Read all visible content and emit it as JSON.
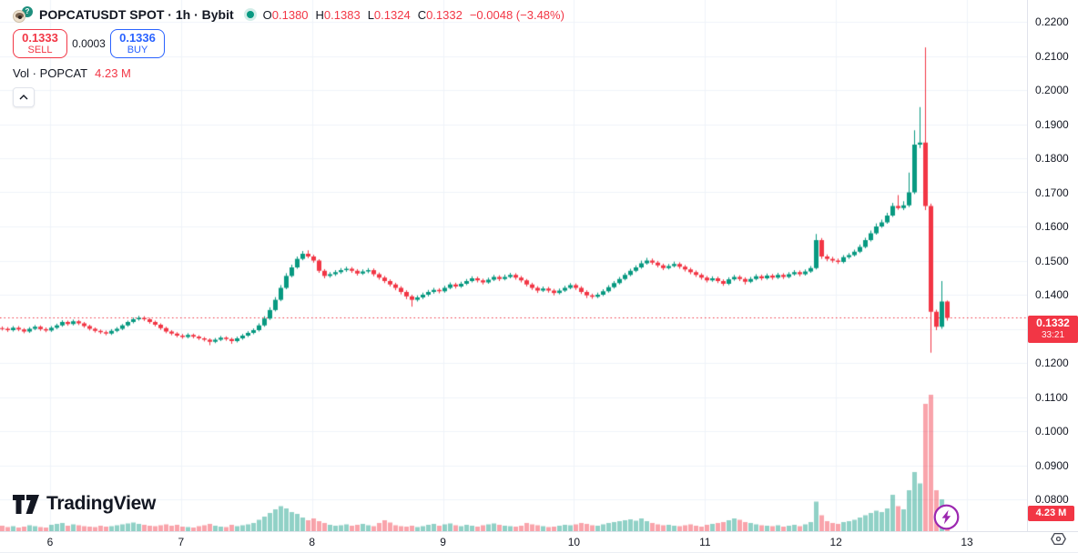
{
  "header": {
    "symbol_title": "POPCATUSDT SPOT · 1h · Bybit",
    "ohlc": {
      "open_label": "O",
      "open": "0.1380",
      "high_label": "H",
      "high": "0.1383",
      "low_label": "L",
      "low": "0.1324",
      "close_label": "C",
      "close": "0.1332",
      "change": "−0.0048 (−3.48%)"
    },
    "sell": {
      "price": "0.1333",
      "label": "SELL"
    },
    "spread": "0.0003",
    "buy": {
      "price": "0.1336",
      "label": "BUY"
    },
    "volume_row": {
      "label": "Vol · POPCAT",
      "value": "4.23 M"
    }
  },
  "watermark": {
    "brand": "TradingView"
  },
  "price_axis": {
    "ticks": [
      "0.2200",
      "0.2100",
      "0.2000",
      "0.1900",
      "0.1800",
      "0.1700",
      "0.1600",
      "0.1500",
      "0.1400",
      "0.1300",
      "0.1200",
      "0.1100",
      "0.1000",
      "0.0900",
      "0.0800"
    ],
    "last_price": "0.1332",
    "countdown": "33:21",
    "volume_badge": "4.23 M"
  },
  "time_axis": {
    "labels": [
      "6",
      "7",
      "8",
      "9",
      "10",
      "11",
      "12",
      "13"
    ]
  },
  "colors": {
    "up": "#089981",
    "down": "#f23645",
    "vol_up": "rgba(8,153,129,0.45)",
    "vol_down": "rgba(242,54,69,0.45)",
    "grid": "#f0f3fa",
    "price_line": "#f23645",
    "label_bg": "#f23645",
    "buy_blue": "#2962ff",
    "boost_purple": "#9c27b0"
  },
  "chart_data": {
    "type": "candlestick",
    "title": "POPCATUSDT SPOT · 1h · Bybit",
    "interval": "1h",
    "exchange": "Bybit",
    "last_price": 0.1332,
    "ylim": [
      0.0707,
      0.2264
    ],
    "x_day_labels": [
      "6",
      "7",
      "8",
      "9",
      "10",
      "11",
      "12",
      "13"
    ],
    "price_scale": 10000,
    "ohlc": [
      [
        1302,
        1307,
        1295,
        1300
      ],
      [
        1300,
        1305,
        1291,
        1296
      ],
      [
        1296,
        1308,
        1292,
        1303
      ],
      [
        1303,
        1308,
        1293,
        1298
      ],
      [
        1298,
        1302,
        1287,
        1292
      ],
      [
        1292,
        1305,
        1288,
        1300
      ],
      [
        1300,
        1311,
        1296,
        1306
      ],
      [
        1306,
        1310,
        1294,
        1299
      ],
      [
        1299,
        1304,
        1290,
        1295
      ],
      [
        1295,
        1308,
        1291,
        1303
      ],
      [
        1303,
        1315,
        1299,
        1310
      ],
      [
        1310,
        1325,
        1306,
        1320
      ],
      [
        1320,
        1324,
        1309,
        1314
      ],
      [
        1314,
        1327,
        1310,
        1322
      ],
      [
        1322,
        1326,
        1311,
        1316
      ],
      [
        1316,
        1320,
        1303,
        1308
      ],
      [
        1308,
        1312,
        1295,
        1300
      ],
      [
        1300,
        1304,
        1289,
        1294
      ],
      [
        1294,
        1298,
        1285,
        1290
      ],
      [
        1290,
        1295,
        1281,
        1286
      ],
      [
        1286,
        1299,
        1282,
        1294
      ],
      [
        1294,
        1305,
        1290,
        1300
      ],
      [
        1300,
        1314,
        1296,
        1310
      ],
      [
        1310,
        1324,
        1306,
        1320
      ],
      [
        1320,
        1333,
        1316,
        1328
      ],
      [
        1328,
        1338,
        1324,
        1332
      ],
      [
        1332,
        1337,
        1323,
        1328
      ],
      [
        1328,
        1332,
        1315,
        1320
      ],
      [
        1320,
        1324,
        1307,
        1312
      ],
      [
        1312,
        1316,
        1297,
        1302
      ],
      [
        1302,
        1306,
        1287,
        1292
      ],
      [
        1292,
        1296,
        1281,
        1286
      ],
      [
        1286,
        1290,
        1275,
        1280
      ],
      [
        1280,
        1285,
        1271,
        1276
      ],
      [
        1276,
        1287,
        1272,
        1282
      ],
      [
        1282,
        1286,
        1272,
        1277
      ],
      [
        1277,
        1281,
        1267,
        1272
      ],
      [
        1272,
        1276,
        1263,
        1268
      ],
      [
        1268,
        1272,
        1252,
        1262
      ],
      [
        1262,
        1273,
        1258,
        1268
      ],
      [
        1268,
        1279,
        1264,
        1274
      ],
      [
        1274,
        1278,
        1265,
        1270
      ],
      [
        1270,
        1274,
        1256,
        1264
      ],
      [
        1264,
        1277,
        1260,
        1272
      ],
      [
        1272,
        1285,
        1268,
        1280
      ],
      [
        1280,
        1293,
        1276,
        1288
      ],
      [
        1288,
        1301,
        1284,
        1296
      ],
      [
        1296,
        1316,
        1292,
        1310
      ],
      [
        1310,
        1337,
        1306,
        1330
      ],
      [
        1330,
        1363,
        1326,
        1355
      ],
      [
        1355,
        1393,
        1351,
        1385
      ],
      [
        1385,
        1428,
        1381,
        1420
      ],
      [
        1420,
        1463,
        1416,
        1455
      ],
      [
        1455,
        1488,
        1451,
        1480
      ],
      [
        1480,
        1512,
        1476,
        1505
      ],
      [
        1505,
        1528,
        1501,
        1520
      ],
      [
        1520,
        1530,
        1507,
        1512
      ],
      [
        1512,
        1517,
        1494,
        1500
      ],
      [
        1500,
        1504,
        1464,
        1470
      ],
      [
        1470,
        1475,
        1448,
        1455
      ],
      [
        1455,
        1466,
        1450,
        1460
      ],
      [
        1460,
        1472,
        1455,
        1466
      ],
      [
        1466,
        1478,
        1461,
        1472
      ],
      [
        1472,
        1482,
        1467,
        1476
      ],
      [
        1476,
        1481,
        1464,
        1470
      ],
      [
        1470,
        1475,
        1456,
        1462
      ],
      [
        1462,
        1474,
        1458,
        1468
      ],
      [
        1468,
        1478,
        1463,
        1472
      ],
      [
        1472,
        1477,
        1454,
        1460
      ],
      [
        1460,
        1465,
        1444,
        1450
      ],
      [
        1450,
        1455,
        1434,
        1440
      ],
      [
        1440,
        1445,
        1424,
        1430
      ],
      [
        1430,
        1435,
        1413,
        1420
      ],
      [
        1420,
        1425,
        1401,
        1408
      ],
      [
        1408,
        1413,
        1387,
        1395
      ],
      [
        1395,
        1400,
        1365,
        1385
      ],
      [
        1385,
        1398,
        1380,
        1392
      ],
      [
        1392,
        1406,
        1387,
        1400
      ],
      [
        1400,
        1414,
        1395,
        1408
      ],
      [
        1408,
        1420,
        1403,
        1414
      ],
      [
        1414,
        1419,
        1404,
        1410
      ],
      [
        1410,
        1426,
        1406,
        1420
      ],
      [
        1420,
        1436,
        1416,
        1430
      ],
      [
        1430,
        1435,
        1418,
        1424
      ],
      [
        1424,
        1438,
        1420,
        1432
      ],
      [
        1432,
        1446,
        1428,
        1440
      ],
      [
        1440,
        1454,
        1436,
        1448
      ],
      [
        1448,
        1453,
        1436,
        1442
      ],
      [
        1442,
        1447,
        1430,
        1436
      ],
      [
        1436,
        1450,
        1432,
        1444
      ],
      [
        1444,
        1458,
        1440,
        1452
      ],
      [
        1452,
        1457,
        1440,
        1446
      ],
      [
        1446,
        1459,
        1442,
        1452
      ],
      [
        1452,
        1464,
        1448,
        1458
      ],
      [
        1458,
        1463,
        1444,
        1450
      ],
      [
        1450,
        1455,
        1436,
        1442
      ],
      [
        1442,
        1446,
        1424,
        1430
      ],
      [
        1430,
        1435,
        1414,
        1420
      ],
      [
        1420,
        1425,
        1405,
        1412
      ],
      [
        1412,
        1424,
        1408,
        1418
      ],
      [
        1418,
        1423,
        1406,
        1412
      ],
      [
        1412,
        1417,
        1398,
        1405
      ],
      [
        1405,
        1418,
        1401,
        1412
      ],
      [
        1412,
        1426,
        1408,
        1420
      ],
      [
        1420,
        1434,
        1416,
        1428
      ],
      [
        1428,
        1433,
        1414,
        1420
      ],
      [
        1420,
        1425,
        1402,
        1408
      ],
      [
        1408,
        1413,
        1390,
        1398
      ],
      [
        1398,
        1403,
        1388,
        1394
      ],
      [
        1394,
        1406,
        1390,
        1400
      ],
      [
        1400,
        1416,
        1396,
        1410
      ],
      [
        1410,
        1428,
        1406,
        1422
      ],
      [
        1422,
        1440,
        1418,
        1434
      ],
      [
        1434,
        1452,
        1430,
        1446
      ],
      [
        1446,
        1464,
        1442,
        1458
      ],
      [
        1458,
        1476,
        1454,
        1470
      ],
      [
        1470,
        1486,
        1466,
        1480
      ],
      [
        1480,
        1500,
        1476,
        1492
      ],
      [
        1492,
        1508,
        1488,
        1500
      ],
      [
        1500,
        1506,
        1488,
        1494
      ],
      [
        1494,
        1499,
        1480,
        1486
      ],
      [
        1486,
        1491,
        1472,
        1478
      ],
      [
        1478,
        1490,
        1474,
        1484
      ],
      [
        1484,
        1497,
        1480,
        1490
      ],
      [
        1490,
        1495,
        1476,
        1482
      ],
      [
        1482,
        1487,
        1468,
        1474
      ],
      [
        1474,
        1479,
        1460,
        1466
      ],
      [
        1466,
        1471,
        1452,
        1458
      ],
      [
        1458,
        1463,
        1444,
        1450
      ],
      [
        1450,
        1455,
        1436,
        1442
      ],
      [
        1442,
        1454,
        1438,
        1448
      ],
      [
        1448,
        1453,
        1434,
        1440
      ],
      [
        1440,
        1445,
        1426,
        1432
      ],
      [
        1432,
        1451,
        1428,
        1445
      ],
      [
        1445,
        1458,
        1441,
        1452
      ],
      [
        1452,
        1457,
        1440,
        1446
      ],
      [
        1446,
        1451,
        1430,
        1438
      ],
      [
        1438,
        1452,
        1434,
        1446
      ],
      [
        1446,
        1460,
        1442,
        1454
      ],
      [
        1454,
        1459,
        1442,
        1448
      ],
      [
        1448,
        1462,
        1444,
        1456
      ],
      [
        1456,
        1461,
        1444,
        1450
      ],
      [
        1450,
        1464,
        1446,
        1458
      ],
      [
        1458,
        1463,
        1446,
        1452
      ],
      [
        1452,
        1466,
        1448,
        1460
      ],
      [
        1460,
        1472,
        1456,
        1466
      ],
      [
        1466,
        1471,
        1454,
        1460
      ],
      [
        1460,
        1474,
        1456,
        1468
      ],
      [
        1468,
        1484,
        1464,
        1478
      ],
      [
        1478,
        1578,
        1474,
        1560
      ],
      [
        1560,
        1566,
        1505,
        1512
      ],
      [
        1512,
        1518,
        1498,
        1505
      ],
      [
        1505,
        1511,
        1494,
        1500
      ],
      [
        1500,
        1506,
        1490,
        1496
      ],
      [
        1496,
        1516,
        1492,
        1510
      ],
      [
        1510,
        1522,
        1505,
        1516
      ],
      [
        1516,
        1532,
        1512,
        1526
      ],
      [
        1526,
        1547,
        1522,
        1540
      ],
      [
        1540,
        1567,
        1536,
        1560
      ],
      [
        1560,
        1588,
        1556,
        1580
      ],
      [
        1580,
        1609,
        1576,
        1600
      ],
      [
        1600,
        1620,
        1596,
        1612
      ],
      [
        1612,
        1640,
        1608,
        1632
      ],
      [
        1632,
        1669,
        1628,
        1660
      ],
      [
        1660,
        1692,
        1649,
        1654
      ],
      [
        1654,
        1674,
        1648,
        1662
      ],
      [
        1662,
        1758,
        1657,
        1700
      ],
      [
        1700,
        1882,
        1695,
        1840
      ],
      [
        1840,
        1950,
        1830,
        1846
      ],
      [
        1846,
        2125,
        1648,
        1660
      ],
      [
        1660,
        1667,
        1230,
        1350
      ],
      [
        1350,
        1356,
        1296,
        1306
      ],
      [
        1306,
        1440,
        1300,
        1380
      ],
      [
        1380,
        1383,
        1324,
        1332
      ]
    ],
    "volumes_m": [
      1.2,
      0.9,
      1.1,
      0.8,
      1.0,
      1.3,
      1.1,
      0.9,
      0.8,
      1.4,
      1.6,
      1.8,
      1.2,
      1.5,
      1.3,
      1.1,
      1.0,
      0.9,
      1.2,
      1.0,
      1.1,
      1.3,
      1.5,
      1.7,
      1.9,
      1.6,
      1.4,
      1.2,
      1.1,
      1.3,
      1.5,
      1.2,
      1.4,
      1.0,
      0.9,
      0.8,
      1.1,
      1.3,
      1.6,
      1.2,
      1.0,
      0.9,
      1.4,
      1.1,
      1.3,
      1.5,
      1.8,
      2.5,
      3.2,
      4.0,
      4.8,
      5.5,
      5.0,
      4.2,
      3.8,
      3.0,
      2.4,
      2.8,
      2.2,
      1.8,
      1.4,
      1.2,
      1.3,
      1.5,
      1.2,
      1.4,
      1.6,
      1.3,
      1.1,
      1.8,
      2.4,
      1.9,
      1.3,
      1.1,
      1.0,
      1.2,
      0.9,
      1.1,
      1.4,
      1.6,
      1.2,
      1.5,
      1.7,
      1.3,
      1.1,
      1.4,
      1.2,
      1.0,
      1.3,
      1.5,
      1.7,
      1.4,
      1.2,
      1.1,
      1.0,
      1.2,
      1.8,
      1.5,
      1.3,
      1.1,
      0.9,
      1.0,
      1.2,
      1.4,
      1.3,
      1.5,
      1.8,
      1.6,
      1.3,
      1.2,
      1.5,
      1.8,
      2.0,
      2.2,
      2.4,
      2.6,
      2.3,
      2.8,
      2.2,
      1.8,
      1.5,
      1.3,
      1.4,
      1.2,
      1.1,
      1.3,
      1.5,
      1.2,
      1.0,
      1.4,
      1.6,
      1.8,
      2.0,
      2.4,
      2.8,
      2.5,
      2.0,
      1.8,
      1.5,
      1.3,
      1.2,
      1.1,
      1.3,
      1.0,
      1.2,
      1.4,
      1.1,
      1.5,
      2.0,
      6.5,
      3.5,
      2.2,
      1.8,
      1.6,
      2.0,
      2.2,
      2.5,
      3.0,
      3.5,
      4.0,
      4.5,
      4.2,
      5.0,
      8.0,
      5.5,
      4.8,
      9.0,
      13.0,
      10.5,
      28.0,
      30.0,
      9.0,
      7.0,
      4.23
    ],
    "current_candle_volume_m": 4.23
  }
}
